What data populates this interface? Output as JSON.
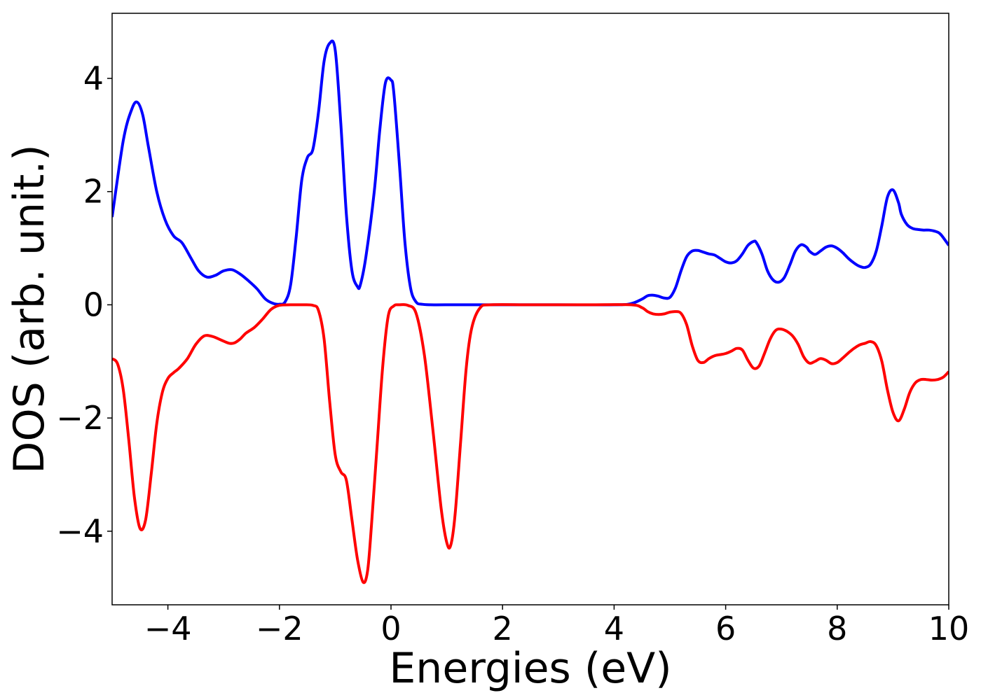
{
  "chart_data": {
    "type": "line",
    "title": "",
    "xlabel": "Energies (eV)",
    "ylabel": "DOS (arb. unit.)",
    "xlim": [
      -5,
      10
    ],
    "ylim": [
      -5.3,
      5.15
    ],
    "grid": false,
    "legend": "none",
    "xticks": [
      {
        "value": -4,
        "label": "−4"
      },
      {
        "value": -2,
        "label": "−2"
      },
      {
        "value": 0,
        "label": "0"
      },
      {
        "value": 2,
        "label": "2"
      },
      {
        "value": 4,
        "label": "4"
      },
      {
        "value": 6,
        "label": "6"
      },
      {
        "value": 8,
        "label": "8"
      },
      {
        "value": 10,
        "label": "10"
      }
    ],
    "yticks": [
      {
        "value": -4,
        "label": "−4"
      },
      {
        "value": -2,
        "label": "−2"
      },
      {
        "value": 0,
        "label": "0"
      },
      {
        "value": 2,
        "label": "2"
      },
      {
        "value": 4,
        "label": "4"
      }
    ],
    "series": [
      {
        "color": "#0000ff",
        "x": [
          -5.0,
          -4.8,
          -4.65,
          -4.55,
          -4.45,
          -4.35,
          -4.2,
          -4.05,
          -3.9,
          -3.75,
          -3.6,
          -3.45,
          -3.3,
          -3.15,
          -3.0,
          -2.85,
          -2.7,
          -2.55,
          -2.4,
          -2.25,
          -2.1,
          -2.0,
          -1.9,
          -1.8,
          -1.7,
          -1.6,
          -1.5,
          -1.4,
          -1.3,
          -1.2,
          -1.1,
          -1.0,
          -0.9,
          -0.8,
          -0.7,
          -0.6,
          -0.55,
          -0.45,
          -0.3,
          -0.2,
          -0.1,
          0.0,
          0.05,
          0.15,
          0.25,
          0.35,
          0.45,
          0.55,
          0.7,
          1.0,
          2.0,
          3.0,
          4.0,
          4.3,
          4.5,
          4.6,
          4.7,
          4.8,
          4.9,
          5.0,
          5.1,
          5.2,
          5.3,
          5.4,
          5.5,
          5.6,
          5.7,
          5.8,
          5.9,
          6.0,
          6.1,
          6.2,
          6.3,
          6.4,
          6.5,
          6.55,
          6.65,
          6.75,
          6.85,
          6.95,
          7.05,
          7.15,
          7.25,
          7.35,
          7.45,
          7.5,
          7.6,
          7.7,
          7.8,
          7.9,
          8.0,
          8.1,
          8.2,
          8.3,
          8.4,
          8.5,
          8.6,
          8.7,
          8.8,
          8.9,
          9.0,
          9.1,
          9.15,
          9.25,
          9.35,
          9.45,
          9.55,
          9.65,
          9.75,
          9.85,
          10.0
        ],
        "y": [
          1.55,
          2.9,
          3.45,
          3.58,
          3.35,
          2.8,
          2.0,
          1.5,
          1.22,
          1.1,
          0.85,
          0.6,
          0.49,
          0.52,
          0.6,
          0.62,
          0.54,
          0.42,
          0.28,
          0.1,
          0.02,
          0.01,
          0.05,
          0.35,
          1.2,
          2.2,
          2.6,
          2.75,
          3.4,
          4.3,
          4.62,
          4.5,
          3.2,
          1.6,
          0.6,
          0.32,
          0.35,
          0.85,
          2.0,
          3.1,
          3.92,
          3.97,
          3.75,
          2.5,
          1.1,
          0.3,
          0.05,
          0.01,
          0.0,
          0.0,
          0.0,
          0.0,
          0.0,
          0.02,
          0.1,
          0.16,
          0.17,
          0.15,
          0.12,
          0.13,
          0.3,
          0.6,
          0.85,
          0.95,
          0.96,
          0.93,
          0.9,
          0.88,
          0.82,
          0.76,
          0.74,
          0.78,
          0.9,
          1.05,
          1.12,
          1.1,
          0.9,
          0.6,
          0.44,
          0.4,
          0.48,
          0.7,
          0.95,
          1.06,
          1.02,
          0.95,
          0.89,
          0.95,
          1.02,
          1.04,
          1.0,
          0.92,
          0.82,
          0.74,
          0.68,
          0.66,
          0.72,
          0.95,
          1.4,
          1.9,
          2.03,
          1.8,
          1.6,
          1.42,
          1.35,
          1.33,
          1.32,
          1.32,
          1.3,
          1.25,
          1.05
        ]
      },
      {
        "color": "#ff0000",
        "x": [
          -5.0,
          -4.9,
          -4.8,
          -4.7,
          -4.6,
          -4.5,
          -4.4,
          -4.3,
          -4.2,
          -4.1,
          -4.0,
          -3.9,
          -3.8,
          -3.65,
          -3.5,
          -3.35,
          -3.2,
          -3.05,
          -2.9,
          -2.8,
          -2.7,
          -2.6,
          -2.45,
          -2.3,
          -2.15,
          -2.0,
          -1.8,
          -1.6,
          -1.4,
          -1.3,
          -1.2,
          -1.1,
          -1.0,
          -0.9,
          -0.8,
          -0.7,
          -0.6,
          -0.5,
          -0.42,
          -0.35,
          -0.25,
          -0.15,
          -0.05,
          0.05,
          0.15,
          0.3,
          0.45,
          0.6,
          0.75,
          0.9,
          1.0,
          1.07,
          1.15,
          1.25,
          1.35,
          1.45,
          1.6,
          1.8,
          2.5,
          3.5,
          4.3,
          4.5,
          4.6,
          4.7,
          4.8,
          4.9,
          5.0,
          5.1,
          5.2,
          5.3,
          5.4,
          5.5,
          5.6,
          5.7,
          5.8,
          5.9,
          6.0,
          6.1,
          6.2,
          6.3,
          6.4,
          6.5,
          6.6,
          6.7,
          6.8,
          6.9,
          7.0,
          7.1,
          7.2,
          7.3,
          7.4,
          7.5,
          7.6,
          7.7,
          7.8,
          7.9,
          8.0,
          8.1,
          8.2,
          8.3,
          8.4,
          8.5,
          8.6,
          8.7,
          8.8,
          8.9,
          9.0,
          9.1,
          9.2,
          9.3,
          9.4,
          9.5,
          9.6,
          9.7,
          9.8,
          9.9,
          10.0
        ],
        "y": [
          -0.95,
          -1.05,
          -1.5,
          -2.4,
          -3.4,
          -3.95,
          -3.8,
          -3.0,
          -2.1,
          -1.55,
          -1.3,
          -1.2,
          -1.12,
          -0.95,
          -0.7,
          -0.55,
          -0.56,
          -0.62,
          -0.68,
          -0.67,
          -0.6,
          -0.5,
          -0.4,
          -0.25,
          -0.08,
          -0.01,
          0.0,
          0.0,
          -0.01,
          -0.1,
          -0.6,
          -1.7,
          -2.65,
          -2.95,
          -3.1,
          -3.8,
          -4.5,
          -4.9,
          -4.7,
          -3.9,
          -2.5,
          -1.1,
          -0.2,
          -0.02,
          0.0,
          -0.01,
          -0.15,
          -0.9,
          -2.2,
          -3.6,
          -4.2,
          -4.25,
          -3.7,
          -2.4,
          -1.1,
          -0.4,
          -0.05,
          0.0,
          0.0,
          0.0,
          0.0,
          -0.05,
          -0.12,
          -0.16,
          -0.17,
          -0.16,
          -0.13,
          -0.12,
          -0.15,
          -0.35,
          -0.72,
          -0.98,
          -1.02,
          -0.95,
          -0.9,
          -0.88,
          -0.86,
          -0.82,
          -0.77,
          -0.8,
          -0.98,
          -1.12,
          -1.08,
          -0.85,
          -0.6,
          -0.45,
          -0.43,
          -0.47,
          -0.55,
          -0.7,
          -0.92,
          -1.03,
          -1.0,
          -0.95,
          -0.98,
          -1.04,
          -1.02,
          -0.94,
          -0.85,
          -0.77,
          -0.71,
          -0.68,
          -0.65,
          -0.72,
          -1.0,
          -1.5,
          -1.9,
          -2.05,
          -1.85,
          -1.55,
          -1.38,
          -1.32,
          -1.32,
          -1.33,
          -1.32,
          -1.28,
          -1.18
        ]
      }
    ]
  }
}
